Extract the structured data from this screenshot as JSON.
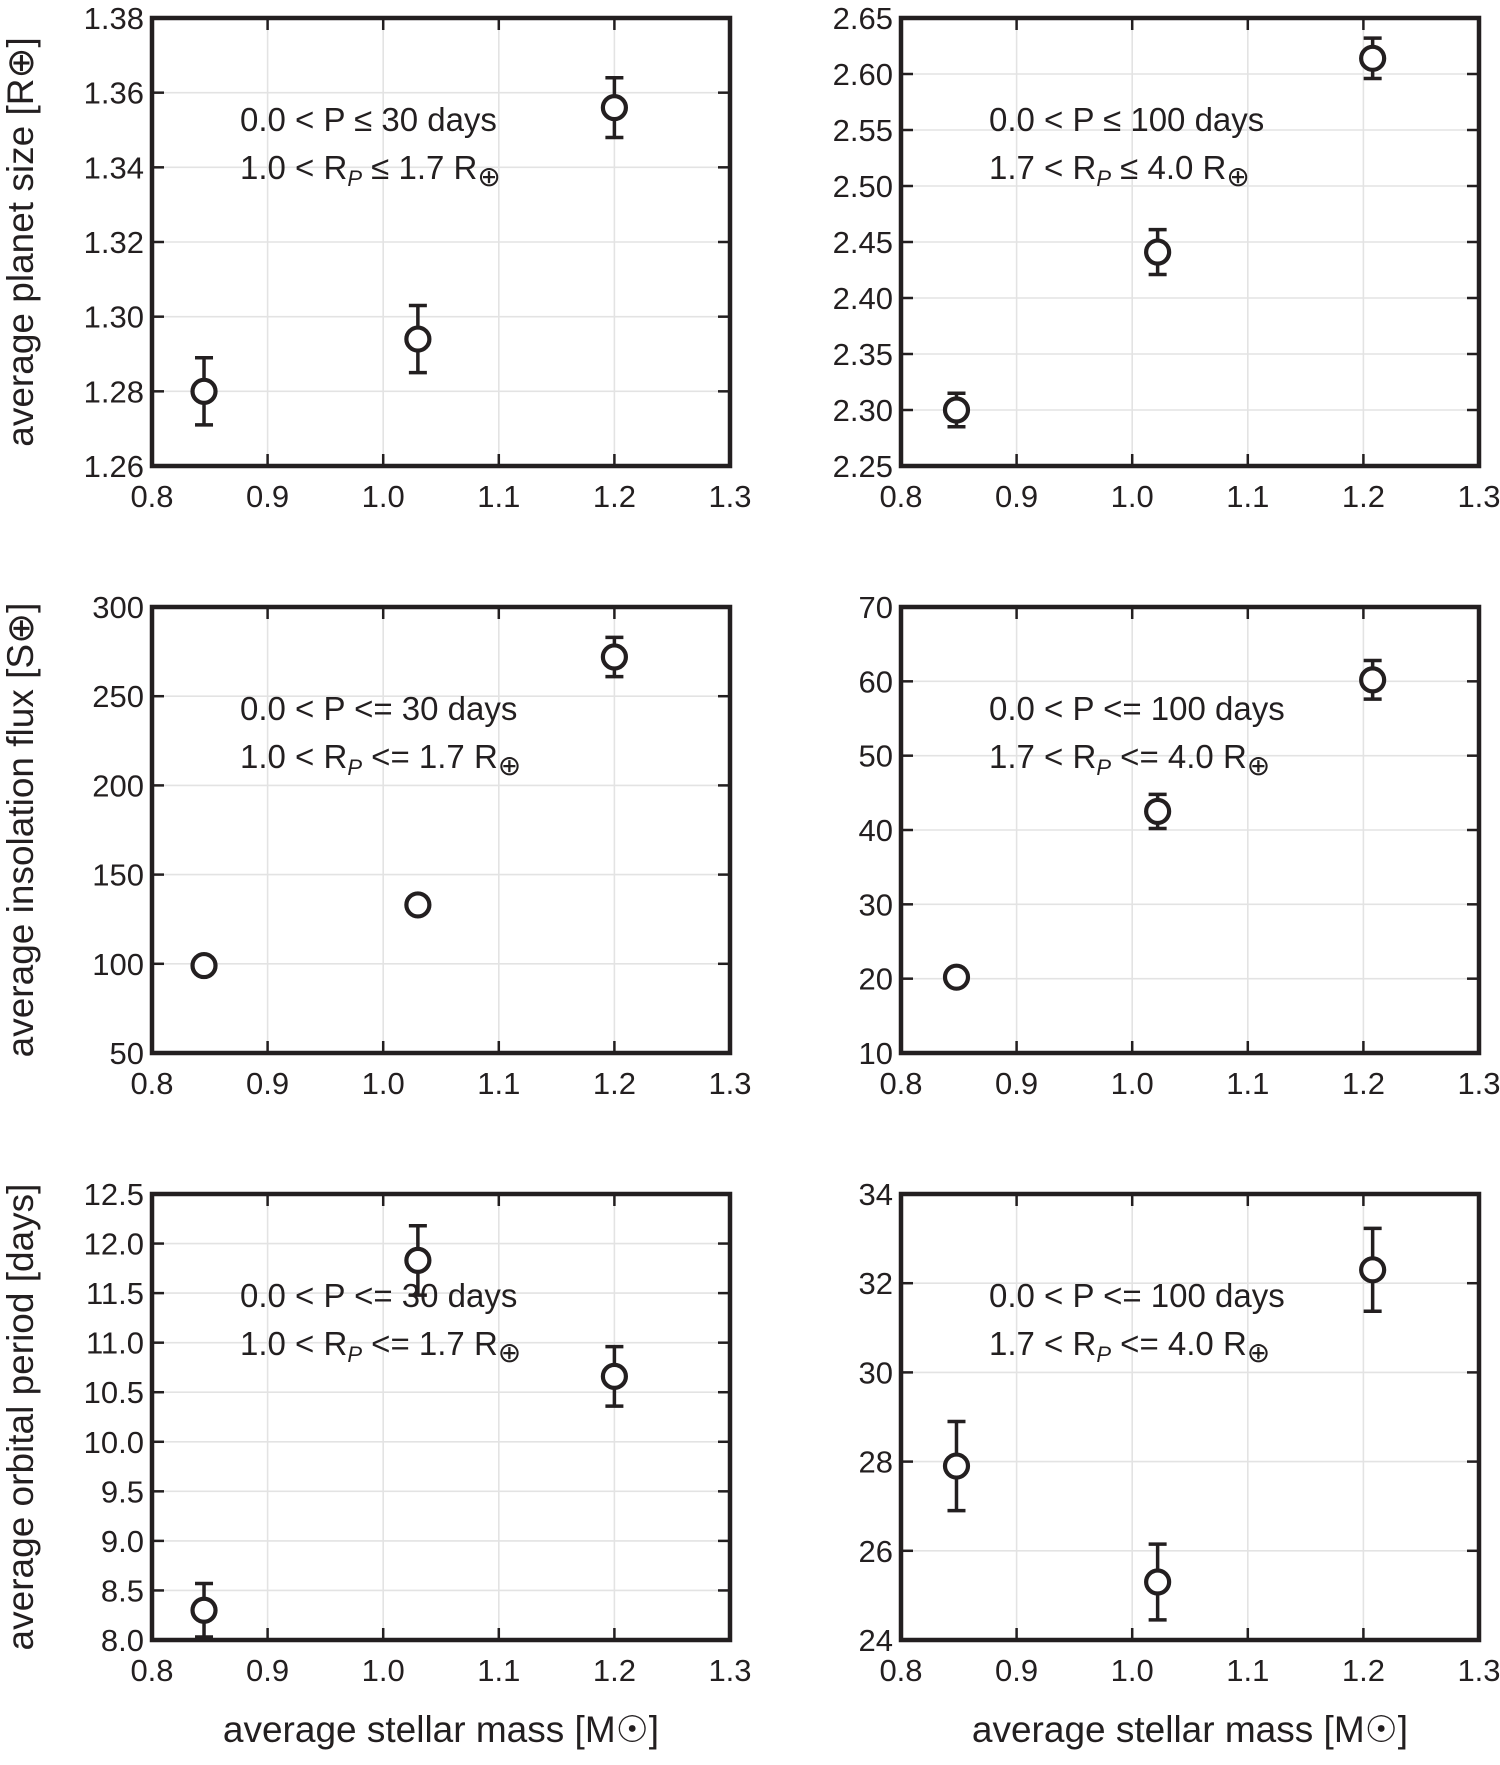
{
  "chart_data": [
    {
      "type": "scatter",
      "xlim": [
        0.8,
        1.3
      ],
      "ylim": [
        1.26,
        1.38
      ],
      "xticks": [
        "0.8",
        "0.9",
        "1.0",
        "1.1",
        "1.2",
        "1.3"
      ],
      "yticks": [
        "1.26",
        "1.28",
        "1.30",
        "1.32",
        "1.34",
        "1.36",
        "1.38"
      ],
      "ylabel": "average planet size [R⊕]",
      "xlabel": "",
      "grid": true,
      "annotation": {
        "line1": "0.0 < P  ≤  30 days",
        "line2": {
          "pre": "1.0 < R",
          "sub": "P",
          "post": " ≤  1.7 R",
          "sym": "⊕"
        }
      },
      "points": [
        {
          "x": 0.845,
          "y": 1.28,
          "err": 0.009
        },
        {
          "x": 1.03,
          "y": 1.294,
          "err": 0.009
        },
        {
          "x": 1.2,
          "y": 1.356,
          "err": 0.008
        }
      ]
    },
    {
      "type": "scatter",
      "xlim": [
        0.8,
        1.3
      ],
      "ylim": [
        2.25,
        2.65
      ],
      "xticks": [
        "0.8",
        "0.9",
        "1.0",
        "1.1",
        "1.2",
        "1.3"
      ],
      "yticks": [
        "2.25",
        "2.30",
        "2.35",
        "2.40",
        "2.45",
        "2.50",
        "2.55",
        "2.60",
        "2.65"
      ],
      "ylabel": "",
      "xlabel": "",
      "grid": true,
      "annotation": {
        "line1": "0.0 < P  ≤  100 days",
        "line2": {
          "pre": "1.7 < R",
          "sub": "P",
          "post": " ≤  4.0 R",
          "sym": "⊕"
        }
      },
      "points": [
        {
          "x": 0.848,
          "y": 2.3,
          "err": 0.015
        },
        {
          "x": 1.022,
          "y": 2.441,
          "err": 0.02
        },
        {
          "x": 1.208,
          "y": 2.614,
          "err": 0.018
        }
      ]
    },
    {
      "type": "scatter",
      "xlim": [
        0.8,
        1.3
      ],
      "ylim": [
        50,
        300
      ],
      "xticks": [
        "0.8",
        "0.9",
        "1.0",
        "1.1",
        "1.2",
        "1.3"
      ],
      "yticks": [
        "50",
        "100",
        "150",
        "200",
        "250",
        "300"
      ],
      "ylabel": "average insolation flux [S⊕]",
      "xlabel": "",
      "grid": true,
      "annotation": {
        "line1": "0.0 < P <= 30 days",
        "line2": {
          "pre": "1.0 < R",
          "sub": "P",
          "post": " <= 1.7 R",
          "sym": "⊕"
        }
      },
      "points": [
        {
          "x": 0.845,
          "y": 99,
          "err": 3
        },
        {
          "x": 1.03,
          "y": 133,
          "err": 4
        },
        {
          "x": 1.2,
          "y": 272,
          "err": 11
        }
      ]
    },
    {
      "type": "scatter",
      "xlim": [
        0.8,
        1.3
      ],
      "ylim": [
        10,
        70
      ],
      "xticks": [
        "0.8",
        "0.9",
        "1.0",
        "1.1",
        "1.2",
        "1.3"
      ],
      "yticks": [
        "10",
        "20",
        "30",
        "40",
        "50",
        "60",
        "70"
      ],
      "ylabel": "",
      "xlabel": "",
      "grid": true,
      "annotation": {
        "line1": "0.0 < P <= 100 days",
        "line2": {
          "pre": "1.7 < R",
          "sub": "P",
          "post": " <= 4.0 R",
          "sym": "⊕"
        }
      },
      "points": [
        {
          "x": 0.848,
          "y": 20.2,
          "err": 1.0
        },
        {
          "x": 1.022,
          "y": 42.5,
          "err": 2.3
        },
        {
          "x": 1.208,
          "y": 60.2,
          "err": 2.6
        }
      ]
    },
    {
      "type": "scatter",
      "xlim": [
        0.8,
        1.3
      ],
      "ylim": [
        8.0,
        12.5
      ],
      "xticks": [
        "0.8",
        "0.9",
        "1.0",
        "1.1",
        "1.2",
        "1.3"
      ],
      "yticks": [
        "8.0",
        "8.5",
        "9.0",
        "9.5",
        "10.0",
        "10.5",
        "11.0",
        "11.5",
        "12.0",
        "12.5"
      ],
      "ylabel": "average orbital period [days]",
      "xlabel": "average stellar mass [M☉]",
      "grid": true,
      "annotation": {
        "line1": "0.0 < P <= 30 days",
        "line2": {
          "pre": "1.0 < R",
          "sub": "P",
          "post": " <= 1.7 R",
          "sym": "⊕"
        }
      },
      "points": [
        {
          "x": 0.845,
          "y": 8.3,
          "err": 0.27
        },
        {
          "x": 1.03,
          "y": 11.83,
          "err": 0.35
        },
        {
          "x": 1.2,
          "y": 10.66,
          "err": 0.3
        }
      ]
    },
    {
      "type": "scatter",
      "xlim": [
        0.8,
        1.3
      ],
      "ylim": [
        24,
        34
      ],
      "xticks": [
        "0.8",
        "0.9",
        "1.0",
        "1.1",
        "1.2",
        "1.3"
      ],
      "yticks": [
        "24",
        "26",
        "28",
        "30",
        "32",
        "34"
      ],
      "ylabel": "",
      "xlabel": "average stellar mass [M☉]",
      "grid": true,
      "annotation": {
        "line1": "0.0 < P <= 100 days",
        "line2": {
          "pre": "1.7 < R",
          "sub": "P",
          "post": " <= 4.0 R",
          "sym": "⊕"
        }
      },
      "points": [
        {
          "x": 0.848,
          "y": 27.9,
          "err": 1.0
        },
        {
          "x": 1.022,
          "y": 25.3,
          "err": 0.85
        },
        {
          "x": 1.208,
          "y": 32.3,
          "err": 0.93
        }
      ]
    }
  ]
}
